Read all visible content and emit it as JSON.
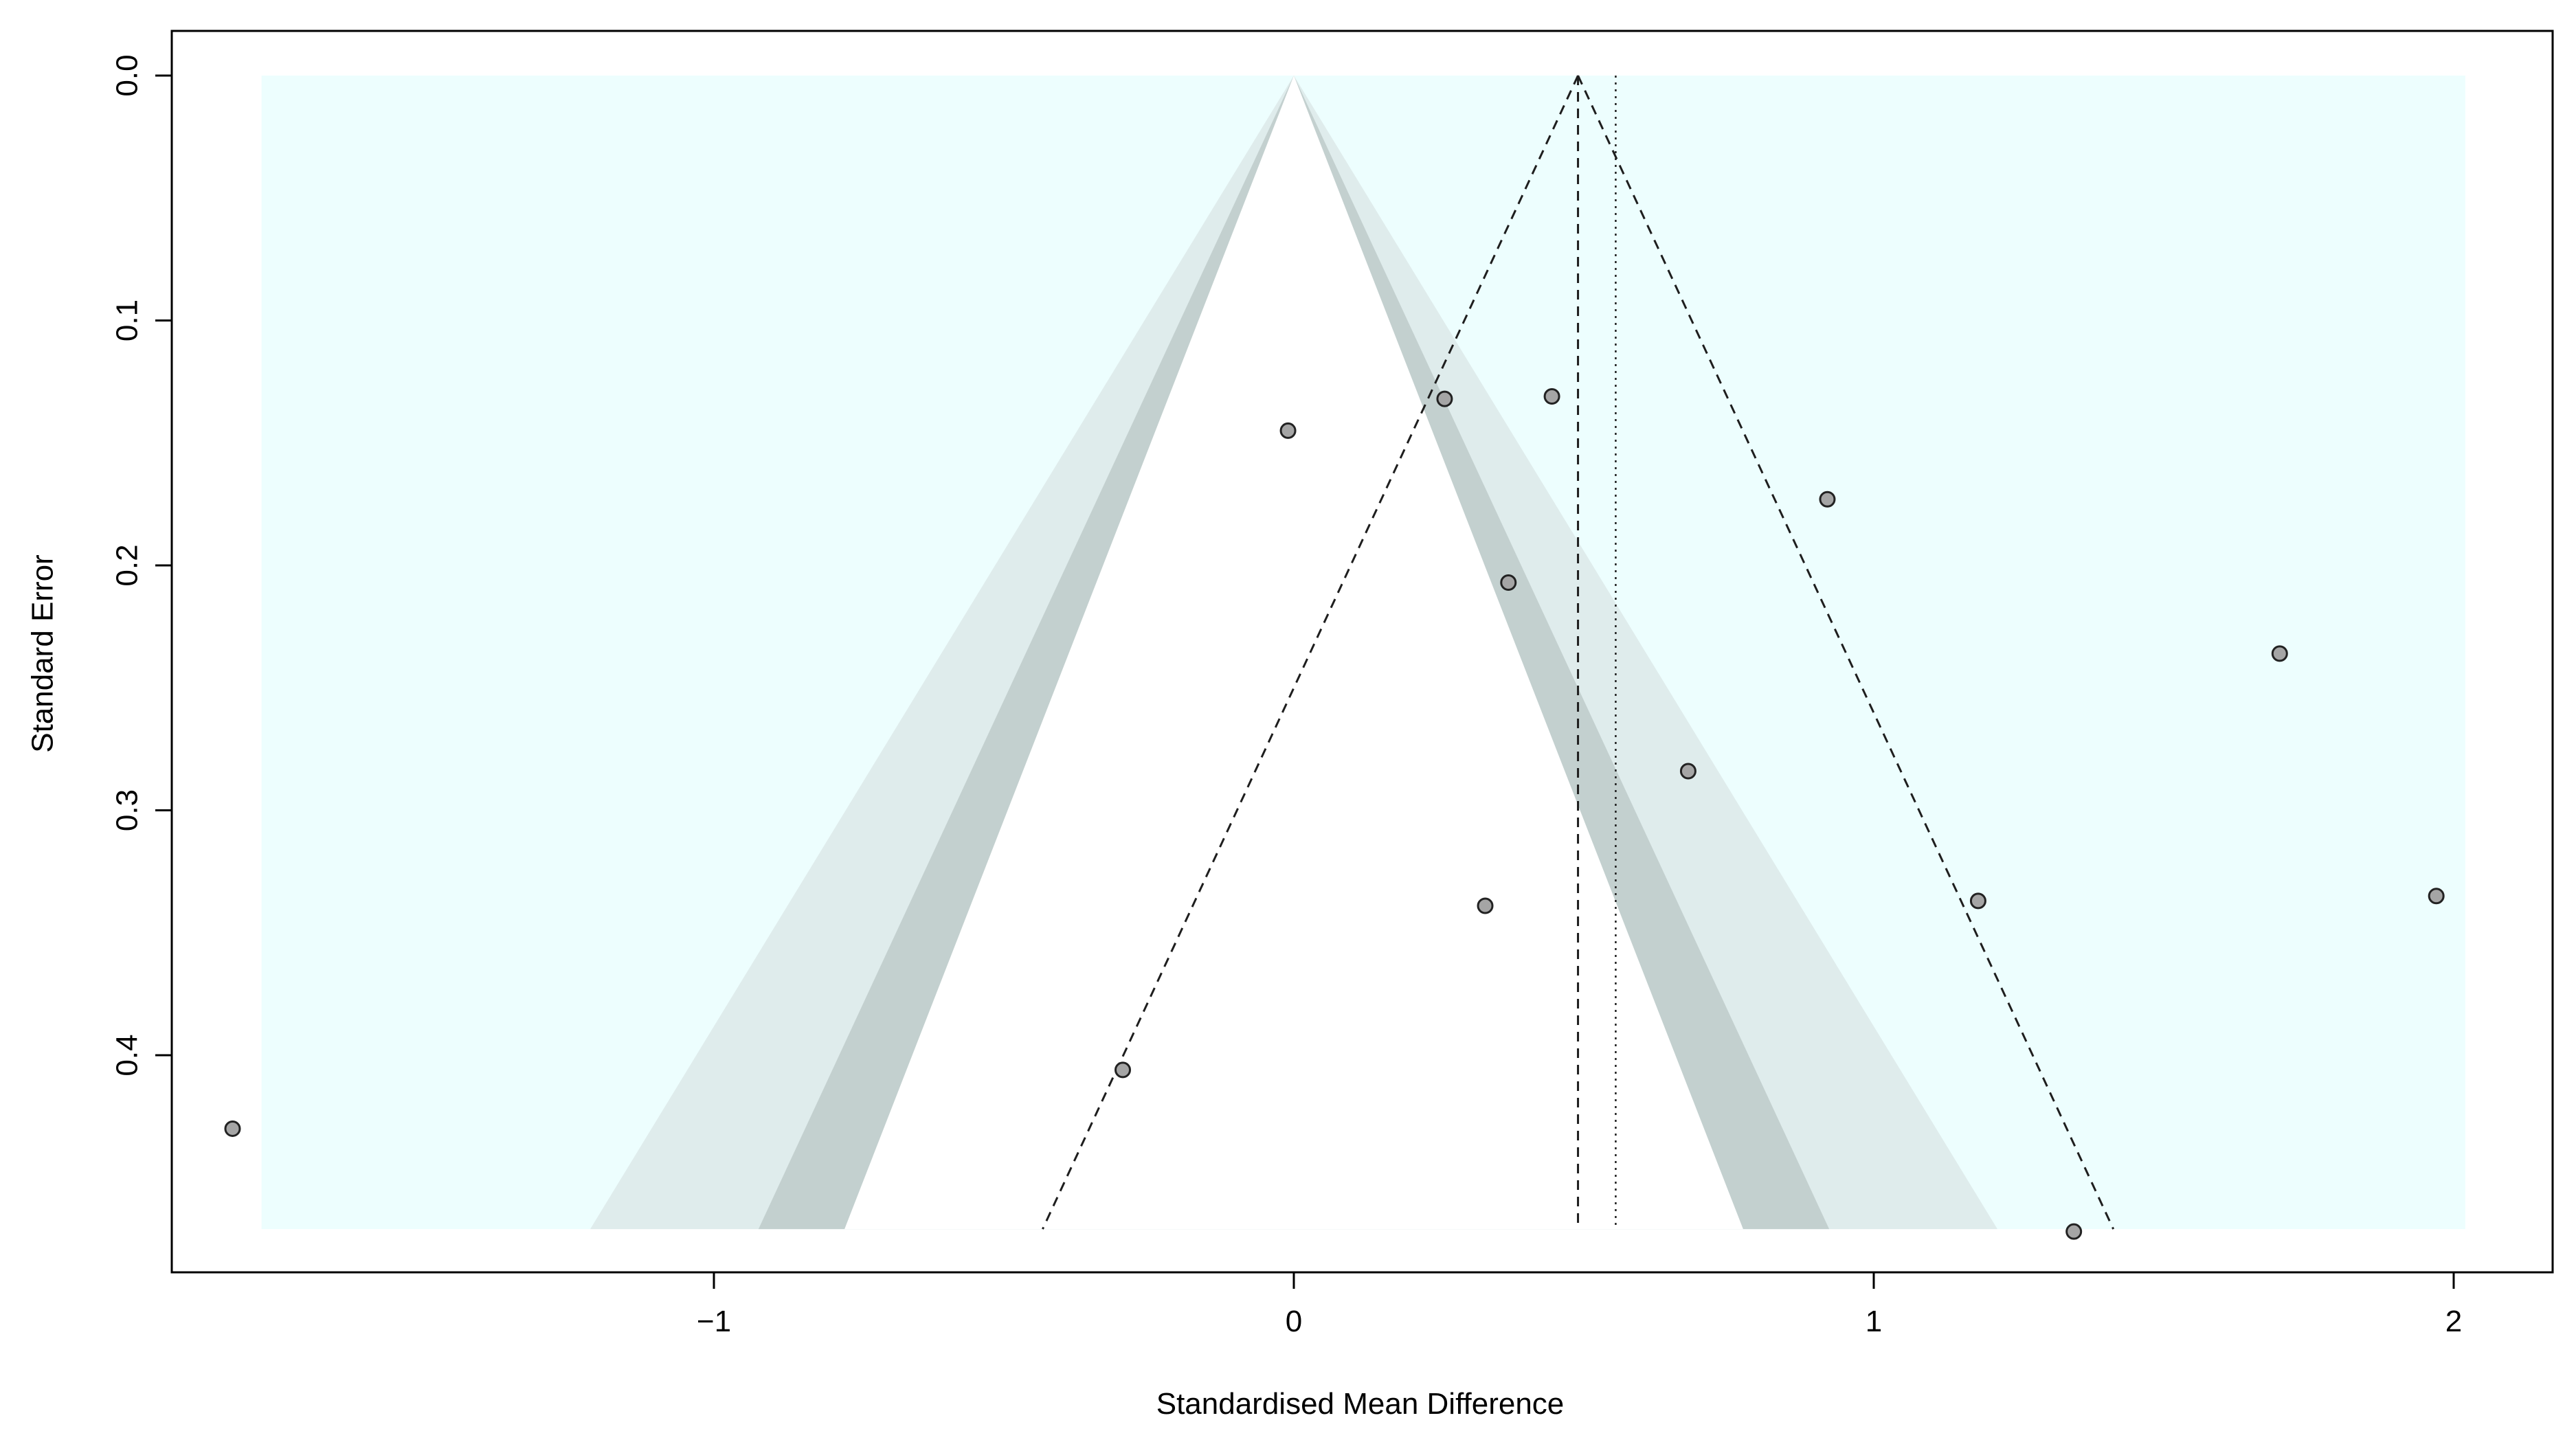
{
  "chart_data": {
    "type": "scatter",
    "title": "",
    "xlabel": "Standardised Mean Difference",
    "ylabel": "Standard Error",
    "xlim": [
      -1.93,
      2.17
    ],
    "ylim": [
      0,
      0.49
    ],
    "y_reversed": true,
    "x_ticks": [
      -1,
      0,
      1,
      2
    ],
    "x_tick_labels": [
      "−1",
      "0",
      "1",
      "2"
    ],
    "y_ticks": [
      0.0,
      0.1,
      0.2,
      0.3,
      0.4
    ],
    "y_tick_labels": [
      "0.0",
      "0.1",
      "0.2",
      "0.3",
      "0.4"
    ],
    "grid": false,
    "contour_region": {
      "x_min": -1.78,
      "x_max": 2.02,
      "se_max": 0.471
    },
    "contour_center": 0,
    "contour_z": [
      1.645,
      1.96,
      2.576
    ],
    "pooled_fixed": 0.49,
    "pooled_random": 0.555,
    "funnel_apex": 0.49,
    "points": [
      {
        "x": -1.83,
        "y": 0.43
      },
      {
        "x": -0.295,
        "y": 0.406
      },
      {
        "x": -0.01,
        "y": 0.145
      },
      {
        "x": 0.26,
        "y": 0.132
      },
      {
        "x": 0.33,
        "y": 0.339
      },
      {
        "x": 0.37,
        "y": 0.207
      },
      {
        "x": 0.445,
        "y": 0.131
      },
      {
        "x": 0.68,
        "y": 0.284
      },
      {
        "x": 0.92,
        "y": 0.173
      },
      {
        "x": 1.18,
        "y": 0.337
      },
      {
        "x": 1.345,
        "y": 0.472
      },
      {
        "x": 1.7,
        "y": 0.236
      },
      {
        "x": 1.97,
        "y": 0.335
      }
    ],
    "colors": {
      "background": "#edfefe",
      "region_p10": "#ffffff",
      "region_p05": "#c3d0cf",
      "region_p01": "#dfecec",
      "point_fill": "#a5a5a5",
      "point_stroke": "#222222",
      "lines": "#1e1e1e"
    }
  }
}
